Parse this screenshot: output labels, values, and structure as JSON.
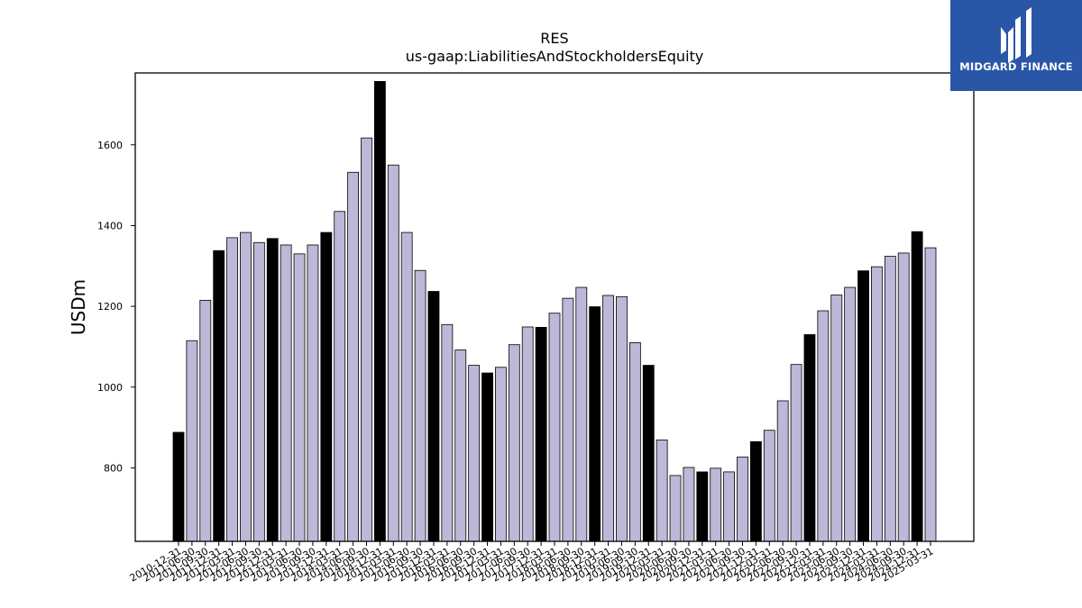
{
  "brand": {
    "name": "MIDGARD FINANCE",
    "bg_color": "#2a56a8",
    "text_color": "#ffffff",
    "icon": "midgard-logo-icon"
  },
  "chart_data": {
    "type": "bar",
    "title": "RES",
    "subtitle": "us-gaap:LiabilitiesAndStockholdersEquity",
    "xlabel": "",
    "ylabel": "USDm",
    "ylim": [
      618,
      1778
    ],
    "yticks": [
      800,
      1000,
      1200,
      1400,
      1600
    ],
    "grid": false,
    "colors": {
      "quarter": "#bcb8d8",
      "year_end": "#000000",
      "edge": "#000000"
    },
    "categories": [
      "2010-12-31",
      "2011-06-30",
      "2011-09-30",
      "2011-12-31",
      "2012-03-31",
      "2012-06-30",
      "2012-09-30",
      "2012-12-31",
      "2013-03-31",
      "2013-06-30",
      "2013-09-30",
      "2013-12-31",
      "2014-03-31",
      "2014-06-30",
      "2014-09-30",
      "2014-12-31",
      "2015-03-31",
      "2015-06-30",
      "2015-09-30",
      "2015-12-31",
      "2016-03-31",
      "2016-06-30",
      "2016-09-30",
      "2016-12-31",
      "2017-03-31",
      "2017-06-30",
      "2017-09-30",
      "2017-12-31",
      "2018-03-31",
      "2018-06-30",
      "2018-09-30",
      "2018-12-31",
      "2019-03-31",
      "2019-06-30",
      "2019-09-30",
      "2019-12-31",
      "2020-03-31",
      "2020-06-30",
      "2020-09-30",
      "2020-12-31",
      "2021-03-31",
      "2021-06-30",
      "2021-09-30",
      "2021-12-31",
      "2022-03-31",
      "2022-06-30",
      "2022-09-30",
      "2022-12-31",
      "2023-03-31",
      "2023-06-30",
      "2023-09-30",
      "2023-12-31",
      "2024-03-31",
      "2024-06-30",
      "2024-09-30",
      "2024-12-31",
      "2025-03-31"
    ],
    "values": [
      888,
      1115,
      1215,
      1338,
      1370,
      1383,
      1358,
      1368,
      1352,
      1330,
      1352,
      1383,
      1435,
      1532,
      1617,
      1757,
      1550,
      1383,
      1289,
      1237,
      1155,
      1092,
      1054,
      1035,
      1049,
      1105,
      1149,
      1148,
      1183,
      1220,
      1247,
      1199,
      1227,
      1224,
      1110,
      1054,
      869,
      781,
      801,
      790,
      799,
      790,
      827,
      865,
      893,
      966,
      1056,
      1130,
      1189,
      1228,
      1247,
      1288,
      1298,
      1324,
      1332,
      1385,
      1345
    ]
  }
}
